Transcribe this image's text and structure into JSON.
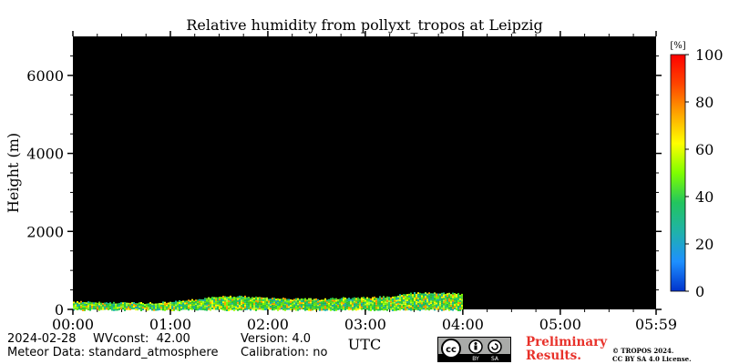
{
  "chart_data": {
    "type": "heatmap",
    "title": "Relative humidity from pollyxt_tropos at Leipzig",
    "xlabel": "UTC",
    "ylabel": "Height (m)",
    "x_tick_labels": [
      "00:00",
      "01:00",
      "02:00",
      "03:00",
      "04:00",
      "05:00",
      "05:59"
    ],
    "x_ticks_hours": [
      0,
      1,
      2,
      3,
      4,
      5,
      5.983
    ],
    "xlim_hours": [
      0,
      5.983
    ],
    "ylim": [
      0,
      7000
    ],
    "y_ticks": [
      0,
      2000,
      4000,
      6000
    ],
    "y_tick_labels": [
      "0",
      "2000",
      "4000",
      "6000"
    ],
    "colorbar": {
      "unit": "[%]",
      "range": [
        0,
        100
      ],
      "ticks": [
        0,
        20,
        40,
        60,
        80,
        100
      ],
      "tick_labels": [
        "0",
        "20",
        "40",
        "60",
        "80",
        "100"
      ],
      "colors": [
        "#0033cc",
        "#1e90ff",
        "#20b2aa",
        "#22c55e",
        "#7fff00",
        "#ffff00",
        "#ffa500",
        "#ff4500",
        "#ff0000"
      ]
    },
    "background_color": "#000000",
    "data_end_hours": 4.0,
    "top_height_profile": {
      "hours": [
        0,
        0.25,
        0.5,
        0.75,
        1.0,
        1.25,
        1.5,
        1.75,
        2.0,
        2.25,
        2.5,
        2.75,
        3.0,
        3.25,
        3.5,
        3.75,
        4.0
      ],
      "top_m": [
        200,
        180,
        170,
        160,
        190,
        250,
        340,
        330,
        290,
        270,
        260,
        290,
        300,
        330,
        420,
        430,
        390
      ]
    },
    "grid": false
  },
  "footer": {
    "date_label": "2024-02-28",
    "wvconst_label": "WVconst:  42.00",
    "version_label": "Version: 4.0",
    "meteor_label": "Meteor Data: standard_atmosphere",
    "calibration_label": "Calibration: no",
    "preliminary_line1": "Preliminary",
    "preliminary_line2": "Results.",
    "copyright_line1": "© TROPOS 2024.",
    "copyright_line2": "CC BY SA 4.0 License.",
    "license_badge_text": [
      "BY",
      "SA"
    ]
  }
}
